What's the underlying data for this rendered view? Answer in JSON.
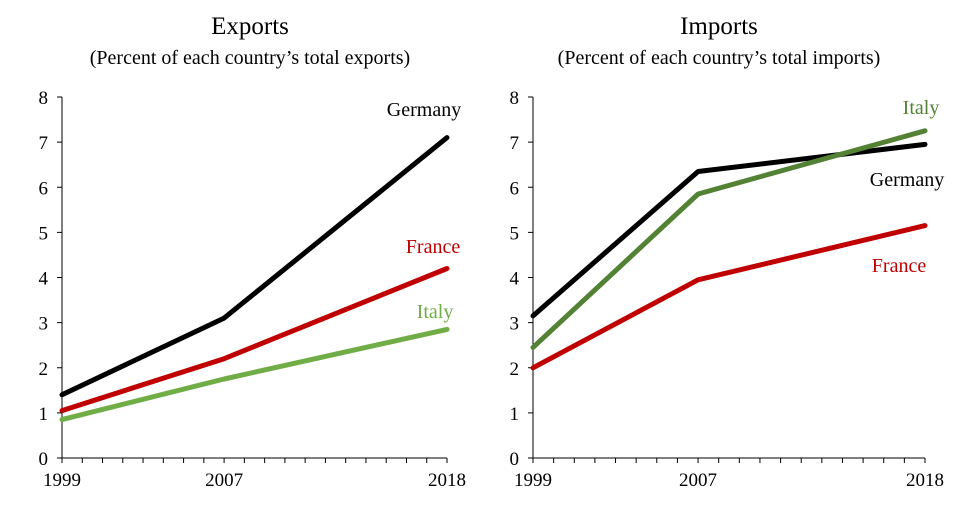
{
  "chart_data": [
    {
      "type": "line",
      "title": "Exports",
      "subtitle": "(Percent of each country’s total exports)",
      "xlabel": "",
      "ylabel": "",
      "x": [
        1999,
        2007,
        2018
      ],
      "x_tick_labels": [
        "1999",
        "2007",
        "2018"
      ],
      "xlim": [
        1999,
        2018
      ],
      "ylim": [
        0,
        8
      ],
      "y_ticks": [
        0,
        1,
        2,
        3,
        4,
        5,
        6,
        7,
        8
      ],
      "grid": false,
      "legend": "inline labels",
      "series": [
        {
          "name": "Germany",
          "color": "#000000",
          "values": [
            1.4,
            3.1,
            7.1
          ]
        },
        {
          "name": "France",
          "color": "#c00000",
          "values": [
            1.05,
            2.2,
            4.2
          ]
        },
        {
          "name": "Italy",
          "color": "#70ad47",
          "values": [
            0.85,
            1.75,
            2.85
          ]
        }
      ]
    },
    {
      "type": "line",
      "title": "Imports",
      "subtitle": "(Percent of each country’s total imports)",
      "xlabel": "",
      "ylabel": "",
      "x": [
        1999,
        2007,
        2018
      ],
      "x_tick_labels": [
        "1999",
        "2007",
        "2018"
      ],
      "xlim": [
        1999,
        2018
      ],
      "ylim": [
        0,
        8
      ],
      "y_ticks": [
        0,
        1,
        2,
        3,
        4,
        5,
        6,
        7,
        8
      ],
      "grid": false,
      "legend": "inline labels",
      "series": [
        {
          "name": "Germany",
          "color": "#000000",
          "values": [
            3.15,
            6.35,
            6.95
          ]
        },
        {
          "name": "Italy",
          "color": "#548235",
          "values": [
            2.45,
            5.85,
            7.25
          ]
        },
        {
          "name": "France",
          "color": "#c00000",
          "values": [
            2.0,
            3.95,
            5.15
          ]
        }
      ]
    }
  ]
}
